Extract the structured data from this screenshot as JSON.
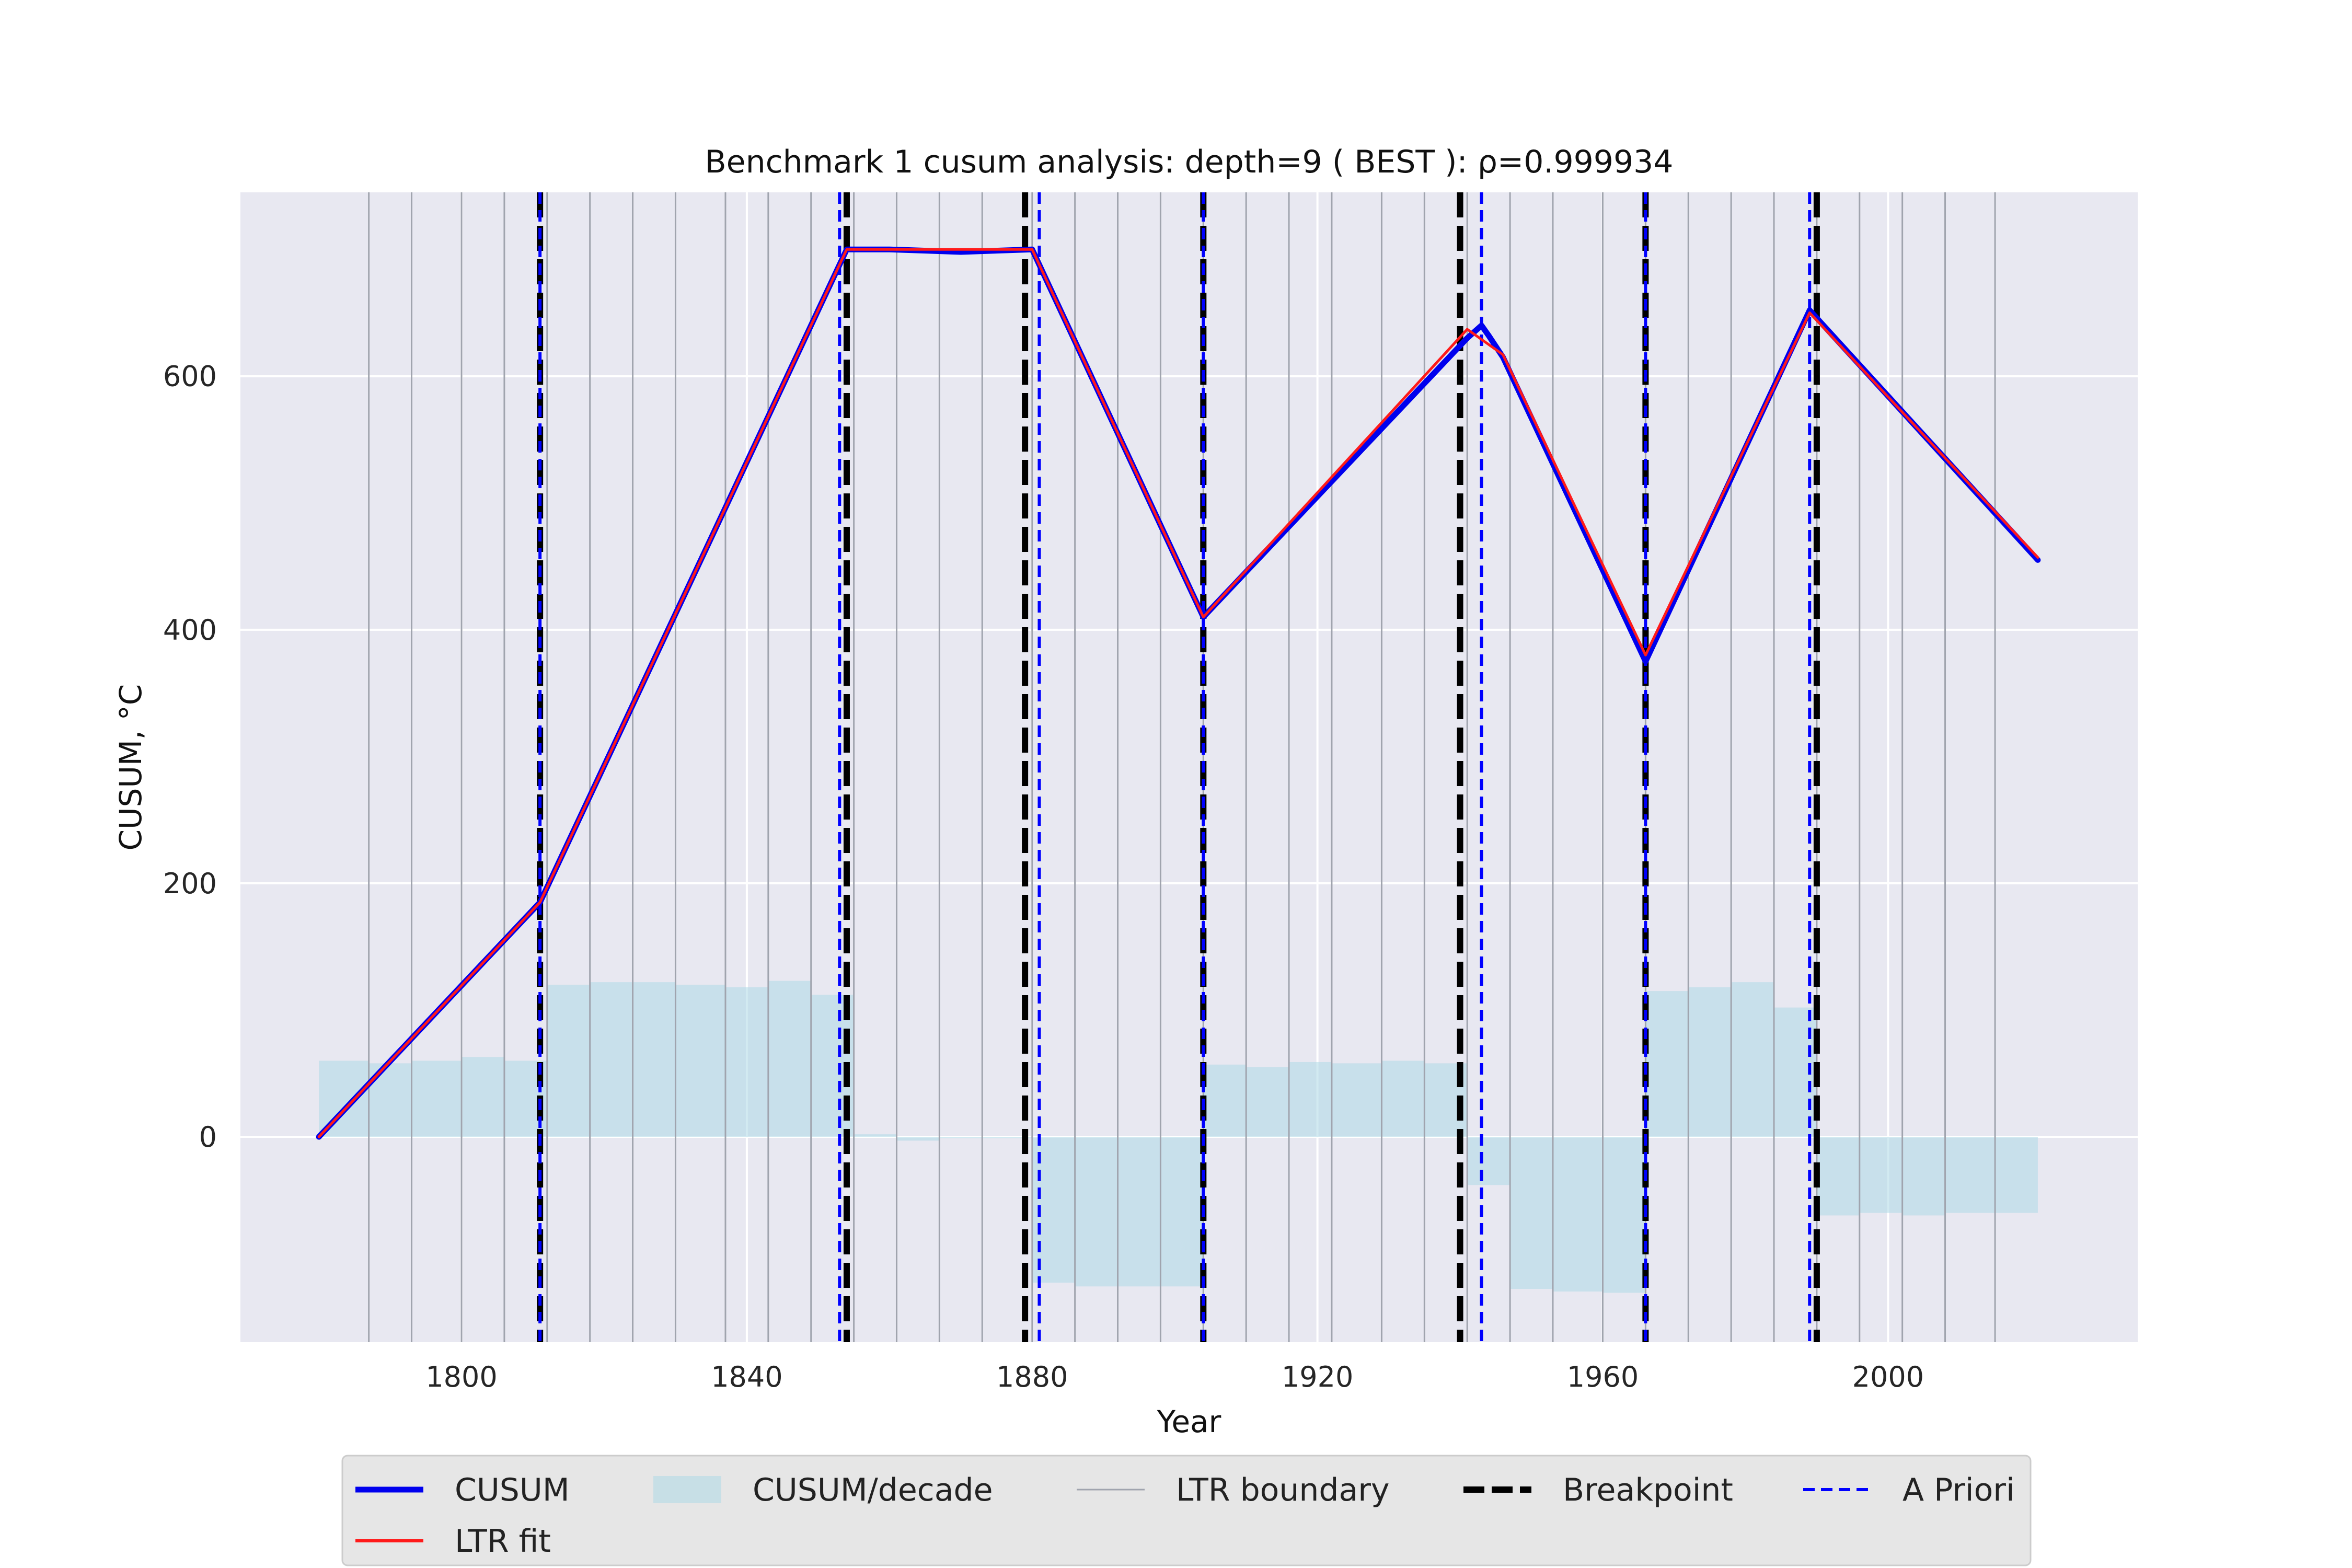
{
  "chart_data": {
    "type": "line",
    "title": "Benchmark 1 cusum analysis: depth=9 ( BEST ): ρ=0.999934",
    "xlabel": "Year",
    "ylabel": "CUSUM, °C",
    "xlim": [
      1769,
      2035
    ],
    "ylim": [
      -162,
      745
    ],
    "x_ticks": [
      1800,
      1840,
      1880,
      1920,
      1960,
      2000
    ],
    "y_ticks": [
      0,
      200,
      400,
      600
    ],
    "grid": true,
    "legend_position": "bottom",
    "colors": {
      "cusum": "#0000ee",
      "ltr_fit": "#ff1a1a",
      "cusum_decade": "#add8e6",
      "ltr_boundary": "#a0a4ae",
      "breakpoint": "#000000",
      "a_priori": "#0000ff",
      "plot_bg": "#e8e8f1",
      "legend_bg": "#e6e6e6"
    },
    "series": [
      {
        "name": "CUSUM",
        "x": [
          1780,
          1811,
          1854,
          1860,
          1870,
          1880,
          1904,
          1941,
          1943,
          1944,
          1946,
          1966,
          1989,
          2021
        ],
        "y": [
          0,
          185,
          700,
          700,
          698,
          700,
          410,
          630,
          640,
          632,
          615,
          375,
          652,
          455
        ]
      },
      {
        "name": "LTR fit",
        "x": [
          1780,
          1811,
          1854,
          1880,
          1904,
          1941,
          1946,
          1966,
          1989,
          2021
        ],
        "y": [
          0,
          185,
          700,
          700,
          410,
          637,
          617,
          380,
          650,
          457
        ]
      },
      {
        "name": "CUSUM/decade",
        "bins": [
          [
            1780,
            1787,
            60
          ],
          [
            1787,
            1793,
            58
          ],
          [
            1793,
            1800,
            60
          ],
          [
            1800,
            1806,
            63
          ],
          [
            1806,
            1812,
            60
          ],
          [
            1812,
            1818,
            120
          ],
          [
            1818,
            1824,
            122
          ],
          [
            1824,
            1830,
            122
          ],
          [
            1830,
            1837,
            120
          ],
          [
            1837,
            1843,
            118
          ],
          [
            1843,
            1849,
            123
          ],
          [
            1849,
            1855,
            112
          ],
          [
            1855,
            1861,
            2
          ],
          [
            1861,
            1867,
            -3
          ],
          [
            1867,
            1873,
            -1
          ],
          [
            1873,
            1880,
            -1
          ],
          [
            1880,
            1886,
            -115
          ],
          [
            1886,
            1892,
            -118
          ],
          [
            1892,
            1898,
            -118
          ],
          [
            1898,
            1904,
            -118
          ],
          [
            1904,
            1910,
            57
          ],
          [
            1910,
            1916,
            55
          ],
          [
            1916,
            1922,
            59
          ],
          [
            1922,
            1929,
            58
          ],
          [
            1929,
            1935,
            60
          ],
          [
            1935,
            1941,
            58
          ],
          [
            1941,
            1947,
            -38
          ],
          [
            1947,
            1953,
            -120
          ],
          [
            1953,
            1960,
            -122
          ],
          [
            1960,
            1966,
            -123
          ],
          [
            1966,
            1972,
            115
          ],
          [
            1972,
            1978,
            118
          ],
          [
            1978,
            1984,
            122
          ],
          [
            1984,
            1990,
            102
          ],
          [
            1990,
            1996,
            -62
          ],
          [
            1996,
            2002,
            -60
          ],
          [
            2002,
            2008,
            -62
          ],
          [
            2008,
            2015,
            -60
          ],
          [
            2015,
            2021,
            -60
          ]
        ]
      }
    ],
    "ltr_boundaries": [
      1787,
      1793,
      1800,
      1806,
      1812,
      1818,
      1824,
      1830,
      1837,
      1843,
      1849,
      1855,
      1861,
      1867,
      1873,
      1880,
      1886,
      1892,
      1898,
      1904,
      1910,
      1916,
      1922,
      1929,
      1935,
      1941,
      1947,
      1953,
      1960,
      1966,
      1972,
      1978,
      1984,
      1990,
      1996,
      2002,
      2008,
      2015
    ],
    "breakpoints": [
      1811,
      1854,
      1879,
      1904,
      1940,
      1966,
      1990
    ],
    "a_priori": [
      1811,
      1853,
      1881,
      1904,
      1943,
      1966,
      1989
    ],
    "legend": [
      {
        "label": "CUSUM",
        "style": "cusum"
      },
      {
        "label": "CUSUM/decade",
        "style": "cusum_decade"
      },
      {
        "label": "LTR boundary",
        "style": "ltr_boundary"
      },
      {
        "label": "Breakpoint",
        "style": "breakpoint"
      },
      {
        "label": "A Priori",
        "style": "a_priori"
      },
      {
        "label": "LTR fit",
        "style": "ltr_fit"
      }
    ]
  }
}
